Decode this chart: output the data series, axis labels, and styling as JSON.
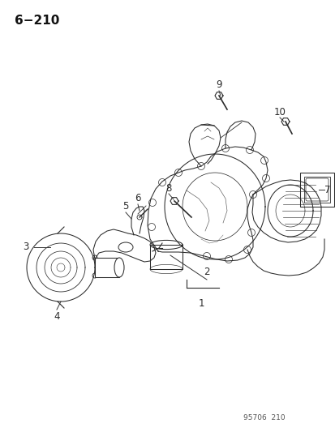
{
  "title": "6−210",
  "footer": "95706  210",
  "bg_color": "#ffffff",
  "title_fontsize": 11,
  "footer_fontsize": 6.5,
  "line_color": "#2a2a2a",
  "lw": 0.75
}
